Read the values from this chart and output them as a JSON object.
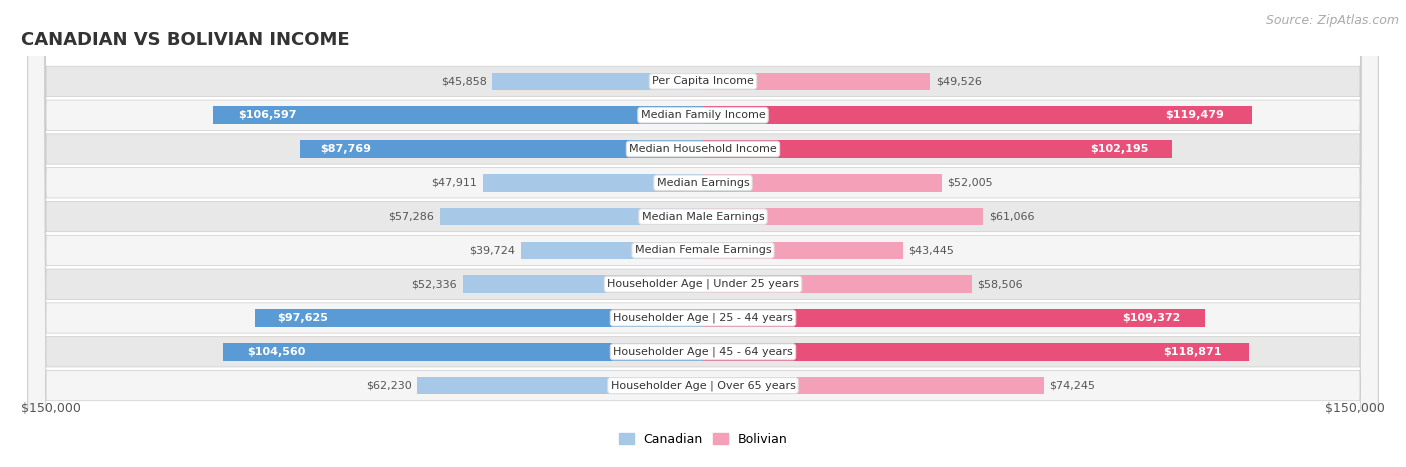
{
  "title": "CANADIAN VS BOLIVIAN INCOME",
  "source": "Source: ZipAtlas.com",
  "categories": [
    "Per Capita Income",
    "Median Family Income",
    "Median Household Income",
    "Median Earnings",
    "Median Male Earnings",
    "Median Female Earnings",
    "Householder Age | Under 25 years",
    "Householder Age | 25 - 44 years",
    "Householder Age | 45 - 64 years",
    "Householder Age | Over 65 years"
  ],
  "canadian_values": [
    45858,
    106597,
    87769,
    47911,
    57286,
    39724,
    52336,
    97625,
    104560,
    62230
  ],
  "bolivian_values": [
    49526,
    119479,
    102195,
    52005,
    61066,
    43445,
    58506,
    109372,
    118871,
    74245
  ],
  "canadian_labels": [
    "$45,858",
    "$106,597",
    "$87,769",
    "$47,911",
    "$57,286",
    "$39,724",
    "$52,336",
    "$97,625",
    "$104,560",
    "$62,230"
  ],
  "bolivian_labels": [
    "$49,526",
    "$119,479",
    "$102,195",
    "$52,005",
    "$61,066",
    "$43,445",
    "$58,506",
    "$109,372",
    "$118,871",
    "$74,245"
  ],
  "canadian_color_light": "#A8C8E8",
  "canadian_color_dark": "#5B9BD5",
  "bolivian_color_light": "#F4A0B8",
  "bolivian_color_dark": "#E8507A",
  "label_color_outside": "#555555",
  "label_color_inside": "#ffffff",
  "max_value": 150000,
  "bar_height": 0.52,
  "background_color": "#ffffff",
  "row_bg_even": "#e8e8e8",
  "row_bg_odd": "#f5f5f5",
  "legend_canadian": "Canadian",
  "legend_bolivian": "Bolivian",
  "xlabel_left": "$150,000",
  "xlabel_right": "$150,000",
  "title_fontsize": 13,
  "source_fontsize": 9,
  "label_fontsize": 8,
  "category_fontsize": 8,
  "inside_threshold": 80000
}
